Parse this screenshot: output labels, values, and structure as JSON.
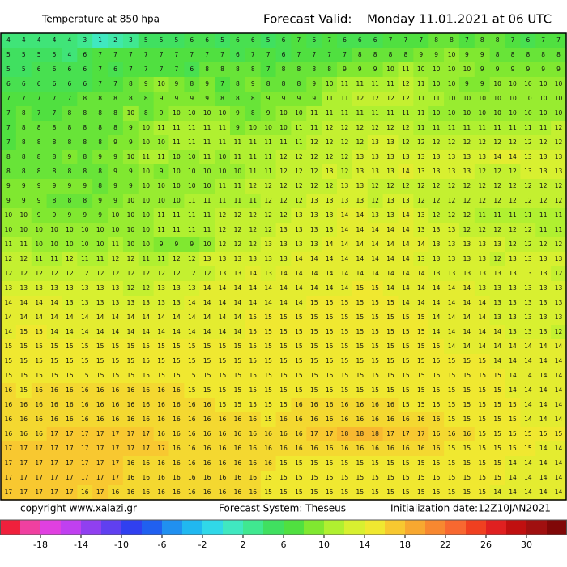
{
  "header": {
    "title": "Temperature at 850 hpa",
    "forecast_label": "Forecast Valid:",
    "forecast_time": "Monday 11.01.2021 at 06 UTC"
  },
  "footer": {
    "copyright": "copyright www.xalazi.gr",
    "system": "Forecast System: Theseus",
    "init": "Initialization date:12Z10JAN2021"
  },
  "colorbar": {
    "range": [
      -22,
      34
    ],
    "colors": [
      "#f0203c",
      "#f040a0",
      "#e040e0",
      "#c040f0",
      "#9040f0",
      "#6040f0",
      "#3040f0",
      "#2060f0",
      "#2090f0",
      "#20b8f0",
      "#30d8e8",
      "#40e8c0",
      "#40e890",
      "#40e060",
      "#50e040",
      "#80e830",
      "#b0f030",
      "#d8f030",
      "#f0e830",
      "#f8c830",
      "#f8a830",
      "#f88830",
      "#f86830",
      "#f04020",
      "#e02020",
      "#c01010",
      "#a01010",
      "#800808"
    ],
    "labels": [
      -18,
      -14,
      -10,
      -6,
      -2,
      2,
      6,
      10,
      14,
      18,
      22,
      26,
      30
    ]
  },
  "grid": [
    [
      4,
      4,
      4,
      4,
      4,
      3,
      1,
      2,
      3,
      5,
      5,
      5,
      6,
      6,
      5,
      6,
      6,
      5,
      6,
      7,
      6,
      7,
      6,
      6,
      6,
      7,
      7,
      7,
      8,
      8,
      7,
      8,
      8,
      7,
      6,
      7,
      7
    ],
    [
      5,
      5,
      5,
      5,
      4,
      6,
      7,
      7,
      7,
      7,
      7,
      7,
      7,
      7,
      7,
      6,
      7,
      7,
      6,
      7,
      7,
      7,
      7,
      8,
      8,
      8,
      8,
      9,
      9,
      10,
      9,
      9,
      8,
      8,
      8,
      8,
      8
    ],
    [
      5,
      5,
      6,
      6,
      6,
      6,
      7,
      6,
      7,
      7,
      7,
      7,
      6,
      8,
      8,
      8,
      8,
      7,
      8,
      8,
      8,
      8,
      9,
      9,
      9,
      10,
      11,
      10,
      10,
      10,
      10,
      9,
      9,
      9,
      9,
      9,
      9
    ],
    [
      6,
      6,
      6,
      6,
      6,
      6,
      7,
      7,
      8,
      9,
      10,
      9,
      8,
      9,
      7,
      8,
      9,
      8,
      8,
      8,
      9,
      10,
      11,
      11,
      11,
      11,
      12,
      11,
      10,
      10,
      9,
      9,
      10,
      10,
      10,
      10,
      10
    ],
    [
      7,
      7,
      7,
      7,
      7,
      8,
      8,
      8,
      8,
      8,
      9,
      9,
      9,
      9,
      8,
      8,
      8,
      9,
      9,
      9,
      9,
      11,
      11,
      12,
      12,
      12,
      12,
      11,
      11,
      10,
      10,
      10,
      10,
      10,
      10,
      10,
      10
    ],
    [
      7,
      8,
      7,
      7,
      8,
      8,
      8,
      8,
      10,
      8,
      9,
      10,
      10,
      10,
      10,
      9,
      8,
      9,
      10,
      10,
      11,
      11,
      11,
      11,
      11,
      11,
      11,
      11,
      10,
      10,
      10,
      10,
      10,
      10,
      10,
      10,
      10
    ],
    [
      7,
      8,
      8,
      8,
      8,
      8,
      8,
      8,
      9,
      10,
      11,
      11,
      11,
      11,
      11,
      9,
      10,
      10,
      10,
      11,
      11,
      12,
      12,
      12,
      12,
      12,
      12,
      11,
      11,
      11,
      11,
      11,
      11,
      11,
      11,
      11,
      12
    ],
    [
      7,
      8,
      8,
      8,
      8,
      8,
      8,
      9,
      9,
      10,
      10,
      11,
      11,
      11,
      11,
      11,
      11,
      11,
      11,
      11,
      12,
      12,
      12,
      12,
      13,
      13,
      12,
      12,
      12,
      12,
      12,
      12,
      12,
      12,
      12,
      12,
      12
    ],
    [
      8,
      8,
      8,
      8,
      9,
      8,
      9,
      9,
      10,
      11,
      11,
      10,
      10,
      11,
      10,
      11,
      11,
      11,
      12,
      12,
      12,
      12,
      12,
      13,
      13,
      13,
      13,
      13,
      13,
      13,
      13,
      13,
      14,
      14,
      13,
      13,
      13
    ],
    [
      8,
      8,
      8,
      8,
      8,
      8,
      8,
      9,
      9,
      10,
      9,
      10,
      10,
      10,
      10,
      10,
      11,
      11,
      12,
      12,
      12,
      13,
      12,
      13,
      13,
      13,
      14,
      13,
      13,
      13,
      13,
      12,
      12,
      12,
      13,
      13,
      13
    ],
    [
      9,
      9,
      9,
      9,
      9,
      9,
      8,
      9,
      9,
      10,
      10,
      10,
      10,
      10,
      11,
      11,
      12,
      12,
      12,
      12,
      12,
      12,
      13,
      13,
      12,
      12,
      12,
      12,
      12,
      12,
      12,
      12,
      12,
      12,
      12,
      12,
      12
    ],
    [
      9,
      9,
      9,
      8,
      8,
      8,
      9,
      9,
      10,
      10,
      10,
      10,
      11,
      11,
      11,
      11,
      11,
      12,
      12,
      12,
      13,
      13,
      13,
      13,
      12,
      13,
      13,
      12,
      12,
      12,
      12,
      12,
      12,
      12,
      12,
      12,
      12
    ],
    [
      10,
      10,
      9,
      9,
      9,
      9,
      9,
      10,
      10,
      10,
      11,
      11,
      11,
      11,
      12,
      12,
      12,
      12,
      12,
      13,
      13,
      13,
      14,
      14,
      13,
      13,
      14,
      13,
      12,
      12,
      12,
      11,
      11,
      11,
      11,
      11,
      11
    ],
    [
      10,
      10,
      10,
      10,
      10,
      10,
      10,
      10,
      10,
      10,
      11,
      11,
      11,
      11,
      12,
      12,
      12,
      12,
      13,
      13,
      13,
      13,
      14,
      14,
      14,
      14,
      14,
      13,
      13,
      13,
      12,
      12,
      12,
      12,
      12,
      11,
      11
    ],
    [
      11,
      11,
      10,
      10,
      10,
      10,
      10,
      11,
      10,
      10,
      9,
      9,
      9,
      10,
      12,
      12,
      12,
      13,
      13,
      13,
      13,
      14,
      14,
      14,
      14,
      14,
      14,
      14,
      13,
      13,
      13,
      13,
      13,
      12,
      12,
      12,
      12
    ],
    [
      12,
      12,
      11,
      11,
      12,
      11,
      11,
      12,
      12,
      11,
      11,
      12,
      12,
      13,
      13,
      13,
      13,
      13,
      13,
      14,
      14,
      14,
      14,
      14,
      14,
      14,
      14,
      13,
      13,
      13,
      13,
      13,
      12,
      13,
      13,
      13,
      13
    ],
    [
      12,
      12,
      12,
      12,
      12,
      12,
      12,
      12,
      12,
      12,
      12,
      12,
      12,
      12,
      13,
      13,
      14,
      13,
      14,
      14,
      14,
      14,
      14,
      14,
      14,
      14,
      14,
      14,
      13,
      13,
      13,
      13,
      13,
      13,
      13,
      13,
      12
    ],
    [
      13,
      13,
      13,
      13,
      13,
      13,
      13,
      13,
      12,
      12,
      13,
      13,
      13,
      14,
      14,
      14,
      14,
      14,
      14,
      14,
      14,
      14,
      14,
      15,
      15,
      14,
      14,
      14,
      14,
      14,
      14,
      13,
      13,
      13,
      13,
      13,
      13
    ],
    [
      14,
      14,
      14,
      14,
      13,
      13,
      13,
      13,
      13,
      13,
      13,
      13,
      14,
      14,
      14,
      14,
      14,
      14,
      14,
      14,
      15,
      15,
      15,
      15,
      15,
      15,
      14,
      14,
      14,
      14,
      14,
      14,
      13,
      13,
      13,
      13,
      13
    ],
    [
      14,
      14,
      14,
      14,
      14,
      14,
      14,
      14,
      14,
      14,
      14,
      14,
      14,
      14,
      14,
      14,
      15,
      15,
      15,
      15,
      15,
      15,
      15,
      15,
      15,
      15,
      15,
      15,
      14,
      14,
      14,
      14,
      13,
      13,
      13,
      13,
      13
    ],
    [
      14,
      15,
      15,
      14,
      14,
      14,
      14,
      14,
      14,
      14,
      14,
      14,
      14,
      14,
      14,
      14,
      15,
      15,
      15,
      15,
      15,
      15,
      15,
      15,
      15,
      15,
      15,
      15,
      14,
      14,
      14,
      14,
      14,
      13,
      13,
      13,
      12
    ],
    [
      15,
      15,
      15,
      15,
      15,
      15,
      15,
      15,
      15,
      15,
      15,
      15,
      15,
      15,
      15,
      15,
      15,
      15,
      15,
      15,
      15,
      15,
      15,
      15,
      15,
      15,
      15,
      15,
      15,
      14,
      14,
      14,
      14,
      14,
      14,
      14,
      14
    ],
    [
      15,
      15,
      15,
      15,
      15,
      15,
      15,
      15,
      15,
      15,
      15,
      15,
      15,
      15,
      15,
      15,
      15,
      15,
      15,
      15,
      15,
      15,
      15,
      15,
      15,
      15,
      15,
      15,
      15,
      15,
      15,
      15,
      14,
      14,
      14,
      14,
      14
    ],
    [
      15,
      15,
      15,
      15,
      15,
      15,
      15,
      15,
      15,
      15,
      15,
      15,
      15,
      15,
      15,
      15,
      15,
      15,
      15,
      15,
      15,
      15,
      15,
      15,
      15,
      15,
      15,
      15,
      15,
      15,
      15,
      15,
      15,
      14,
      14,
      14,
      14
    ],
    [
      16,
      15,
      16,
      16,
      16,
      16,
      16,
      16,
      16,
      16,
      16,
      16,
      15,
      15,
      15,
      15,
      15,
      15,
      15,
      15,
      15,
      15,
      15,
      15,
      15,
      15,
      15,
      15,
      15,
      15,
      15,
      15,
      15,
      14,
      14,
      14,
      14
    ],
    [
      16,
      16,
      16,
      16,
      16,
      16,
      16,
      16,
      16,
      16,
      16,
      16,
      16,
      16,
      15,
      15,
      15,
      15,
      15,
      16,
      16,
      16,
      16,
      16,
      16,
      16,
      15,
      15,
      15,
      15,
      15,
      15,
      15,
      15,
      14,
      14,
      14
    ],
    [
      16,
      16,
      16,
      16,
      16,
      16,
      16,
      16,
      16,
      16,
      16,
      16,
      16,
      16,
      16,
      16,
      16,
      15,
      16,
      16,
      16,
      16,
      16,
      16,
      16,
      16,
      16,
      16,
      16,
      15,
      15,
      15,
      15,
      15,
      14,
      14,
      14
    ],
    [
      16,
      16,
      16,
      17,
      17,
      17,
      17,
      17,
      17,
      17,
      16,
      16,
      16,
      16,
      16,
      16,
      16,
      16,
      16,
      16,
      17,
      17,
      18,
      18,
      18,
      17,
      17,
      17,
      16,
      16,
      16,
      15,
      15,
      15,
      15,
      15,
      15
    ],
    [
      17,
      17,
      17,
      17,
      17,
      17,
      17,
      17,
      17,
      17,
      17,
      16,
      16,
      16,
      16,
      16,
      16,
      16,
      16,
      16,
      16,
      16,
      16,
      16,
      16,
      16,
      16,
      16,
      16,
      15,
      15,
      15,
      15,
      15,
      15,
      14,
      14
    ],
    [
      17,
      17,
      17,
      17,
      17,
      17,
      17,
      17,
      16,
      16,
      16,
      16,
      16,
      16,
      16,
      16,
      16,
      16,
      15,
      15,
      15,
      15,
      15,
      15,
      15,
      15,
      15,
      15,
      15,
      15,
      15,
      15,
      15,
      14,
      14,
      14,
      14
    ],
    [
      17,
      17,
      17,
      17,
      17,
      17,
      17,
      17,
      16,
      16,
      16,
      16,
      16,
      16,
      16,
      16,
      16,
      15,
      15,
      15,
      15,
      15,
      15,
      15,
      15,
      15,
      15,
      15,
      15,
      15,
      15,
      15,
      15,
      14,
      14,
      14,
      14
    ],
    [
      17,
      17,
      17,
      17,
      17,
      16,
      17,
      16,
      16,
      16,
      16,
      16,
      16,
      16,
      16,
      16,
      16,
      15,
      15,
      15,
      15,
      15,
      15,
      15,
      15,
      15,
      15,
      15,
      15,
      15,
      15,
      15,
      14,
      14,
      14,
      14,
      14
    ]
  ]
}
